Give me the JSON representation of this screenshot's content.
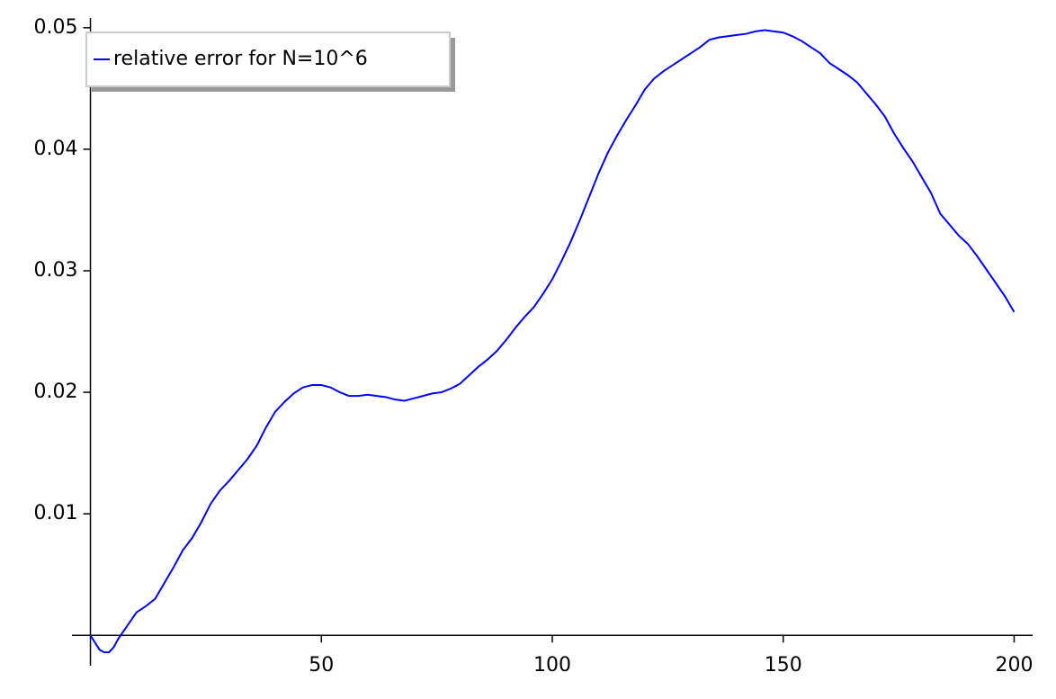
{
  "chart_data": {
    "type": "line",
    "x": [
      0,
      2,
      3,
      4,
      5,
      6,
      8,
      10,
      12,
      14,
      16,
      18,
      20,
      22,
      24,
      26,
      28,
      30,
      32,
      34,
      36,
      38,
      40,
      42,
      44,
      46,
      48,
      50,
      52,
      54,
      56,
      58,
      60,
      62,
      64,
      66,
      68,
      70,
      72,
      74,
      76,
      78,
      80,
      82,
      84,
      86,
      88,
      90,
      92,
      94,
      96,
      98,
      100,
      102,
      104,
      106,
      108,
      110,
      112,
      114,
      116,
      118,
      120,
      122,
      124,
      126,
      128,
      130,
      132,
      134,
      136,
      138,
      140,
      142,
      144,
      146,
      148,
      150,
      152,
      154,
      156,
      158,
      160,
      162,
      164,
      166,
      168,
      170,
      172,
      174,
      176,
      178,
      180,
      182,
      184,
      186,
      188,
      190,
      192,
      194,
      196,
      198,
      200
    ],
    "series": [
      {
        "name": "relative error for N=10^6",
        "color": "#0000ff",
        "values": [
          0,
          -0.0012,
          -0.0014,
          -0.0014,
          -0.001,
          -0.0003,
          0.0008,
          0.0019,
          0.0024,
          0.003,
          0.0043,
          0.0056,
          0.007,
          0.008,
          0.0093,
          0.0108,
          0.0119,
          0.0127,
          0.0136,
          0.0145,
          0.0156,
          0.0171,
          0.0184,
          0.0192,
          0.0199,
          0.0204,
          0.0206,
          0.0206,
          0.0204,
          0.02,
          0.0197,
          0.0197,
          0.0198,
          0.0197,
          0.0196,
          0.0194,
          0.0193,
          0.0195,
          0.0197,
          0.0199,
          0.02,
          0.0203,
          0.0207,
          0.0214,
          0.0221,
          0.0227,
          0.0234,
          0.0243,
          0.0253,
          0.0262,
          0.027,
          0.0281,
          0.0293,
          0.0308,
          0.0324,
          0.0342,
          0.0361,
          0.038,
          0.0397,
          0.0411,
          0.0424,
          0.0436,
          0.0449,
          0.0458,
          0.0464,
          0.0469,
          0.0474,
          0.0479,
          0.0484,
          0.049,
          0.0492,
          0.0493,
          0.0494,
          0.0495,
          0.0497,
          0.0498,
          0.0497,
          0.0496,
          0.0493,
          0.0489,
          0.0484,
          0.0479,
          0.0471,
          0.0466,
          0.0461,
          0.0455,
          0.0446,
          0.0437,
          0.0427,
          0.0413,
          0.0401,
          0.039,
          0.0377,
          0.0364,
          0.0347,
          0.0338,
          0.0329,
          0.0322,
          0.0312,
          0.0301,
          0.029,
          0.0279,
          0.0266
        ]
      }
    ],
    "xlim": [
      -4,
      204
    ],
    "ylim": [
      -0.0025,
      0.0508
    ],
    "xticks": [
      50,
      100,
      150,
      200
    ],
    "yticks": [
      0.01,
      0.02,
      0.03,
      0.04,
      0.05
    ],
    "legend": "upper-left"
  }
}
